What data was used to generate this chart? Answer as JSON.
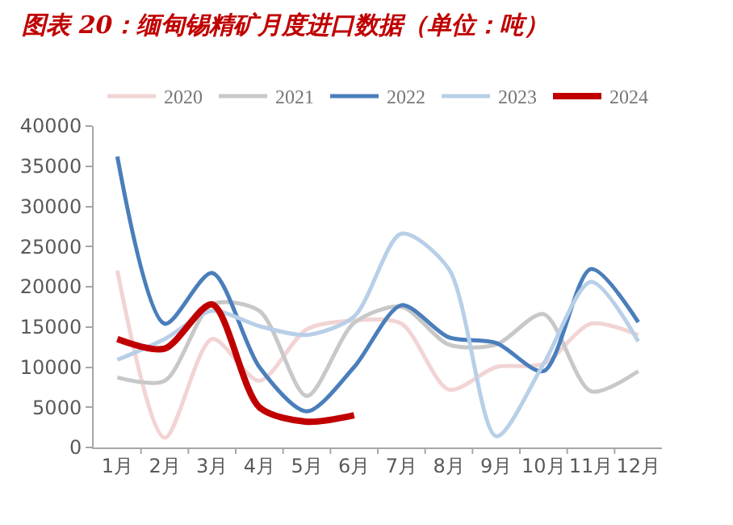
{
  "chart_data": {
    "type": "line",
    "title": "图表 20：缅甸锡精矿月度进口数据（单位：吨）",
    "categories": [
      "1月",
      "2月",
      "3月",
      "4月",
      "5月",
      "6月",
      "7月",
      "8月",
      "9月",
      "10月",
      "11月",
      "12月"
    ],
    "series": [
      {
        "name": "2020",
        "color": "#f2d4d4",
        "values": [
          22000,
          1200,
          13500,
          8300,
          14700,
          15800,
          15400,
          7200,
          10000,
          10400,
          15400,
          14000
        ]
      },
      {
        "name": "2021",
        "color": "#c8c8c8",
        "values": [
          8700,
          8300,
          17800,
          17000,
          6400,
          15500,
          17500,
          12800,
          12800,
          16600,
          7000,
          9500
        ]
      },
      {
        "name": "2022",
        "color": "#4a7ebb",
        "values": [
          36200,
          15400,
          21700,
          10000,
          4500,
          10000,
          17700,
          13700,
          13000,
          9500,
          22200,
          15600
        ]
      },
      {
        "name": "2023",
        "color": "#b8cfe8",
        "values": [
          10900,
          13500,
          17000,
          15100,
          14000,
          16300,
          26600,
          22200,
          1400,
          10400,
          20600,
          13200
        ]
      },
      {
        "name": "2024",
        "color": "#c00000",
        "values": [
          13500,
          12300,
          17800,
          5000,
          3200,
          4000,
          null,
          null,
          null,
          null,
          null,
          null
        ]
      }
    ],
    "ylim": [
      0,
      40000
    ],
    "yticks": [
      0,
      5000,
      10000,
      15000,
      20000,
      25000,
      30000,
      35000,
      40000
    ],
    "grid": false,
    "legend": "top",
    "marker": "none",
    "line_style": "solid"
  }
}
